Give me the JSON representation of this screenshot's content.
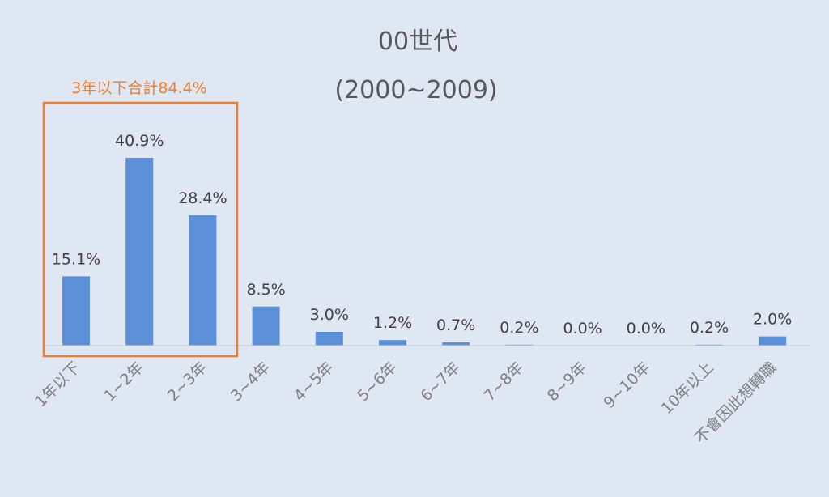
{
  "chart_data": {
    "type": "bar",
    "title_line1": "00世代",
    "title_line2": "(2000~2009)",
    "categories": [
      "1年以下",
      "1~2年",
      "2~3年",
      "3~4年",
      "4~5年",
      "5~6年",
      "6~7年",
      "7~8年",
      "8~9年",
      "9~10年",
      "10年以上",
      "不會因此想轉職"
    ],
    "values": [
      15.1,
      40.9,
      28.4,
      8.5,
      3.0,
      1.2,
      0.7,
      0.2,
      0.0,
      0.0,
      0.2,
      2.0
    ],
    "value_labels": [
      "15.1%",
      "40.9%",
      "28.4%",
      "8.5%",
      "3.0%",
      "1.2%",
      "0.7%",
      "0.2%",
      "0.0%",
      "0.0%",
      "0.2%",
      "2.0%"
    ],
    "ylim": [
      0,
      45
    ],
    "grid": false,
    "annotation": {
      "text": "3年以下合計84.4%",
      "highlighted_categories": [
        "1年以下",
        "1~2年",
        "2~3年"
      ]
    }
  },
  "colors": {
    "background": "#dfe7f2",
    "bar": "#5b8fd8",
    "highlight": "#ed7d31",
    "axis": "#c9cfd8"
  }
}
